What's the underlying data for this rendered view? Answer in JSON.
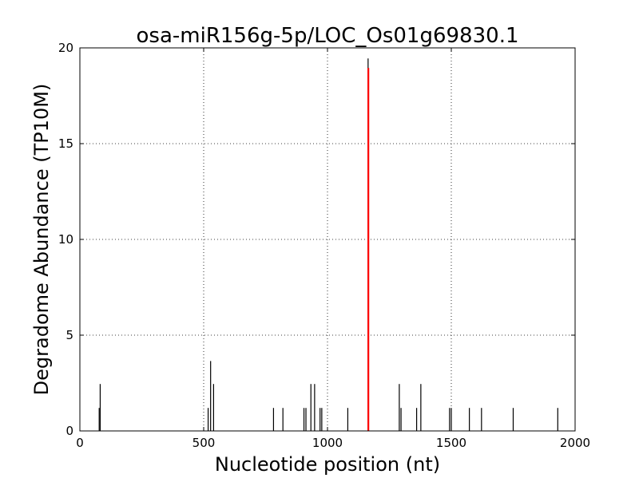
{
  "chart_data": {
    "type": "bar",
    "title": "osa-miR156g-5p/LOC_Os01g69830.1",
    "xlabel": "Nucleotide position (nt)",
    "ylabel": "Degradome Abundance (TP10M)",
    "xlim": [
      0,
      2000
    ],
    "ylim": [
      0,
      20
    ],
    "xticks": [
      0,
      500,
      1000,
      1500,
      2000
    ],
    "yticks": [
      0,
      5,
      10,
      15,
      20
    ],
    "grid": true,
    "series": [
      {
        "color": "#000000",
        "points": [
          {
            "x": 78,
            "y": 1.2
          },
          {
            "x": 82,
            "y": 2.45
          },
          {
            "x": 518,
            "y": 1.2
          },
          {
            "x": 528,
            "y": 3.65
          },
          {
            "x": 540,
            "y": 2.45
          },
          {
            "x": 782,
            "y": 1.2
          },
          {
            "x": 820,
            "y": 1.2
          },
          {
            "x": 905,
            "y": 1.2
          },
          {
            "x": 913,
            "y": 1.2
          },
          {
            "x": 933,
            "y": 2.45
          },
          {
            "x": 948,
            "y": 2.45
          },
          {
            "x": 970,
            "y": 1.2
          },
          {
            "x": 977,
            "y": 1.2
          },
          {
            "x": 1082,
            "y": 1.2
          },
          {
            "x": 1164,
            "y": 19.45
          },
          {
            "x": 1290,
            "y": 2.45
          },
          {
            "x": 1297,
            "y": 1.2
          },
          {
            "x": 1360,
            "y": 1.2
          },
          {
            "x": 1377,
            "y": 2.45
          },
          {
            "x": 1493,
            "y": 1.2
          },
          {
            "x": 1500,
            "y": 1.2
          },
          {
            "x": 1573,
            "y": 1.2
          },
          {
            "x": 1622,
            "y": 1.2
          },
          {
            "x": 1750,
            "y": 1.2
          },
          {
            "x": 1930,
            "y": 1.2
          }
        ]
      },
      {
        "color": "#ff0000",
        "points": [
          {
            "x": 1165,
            "y": 18.95
          }
        ]
      }
    ]
  }
}
